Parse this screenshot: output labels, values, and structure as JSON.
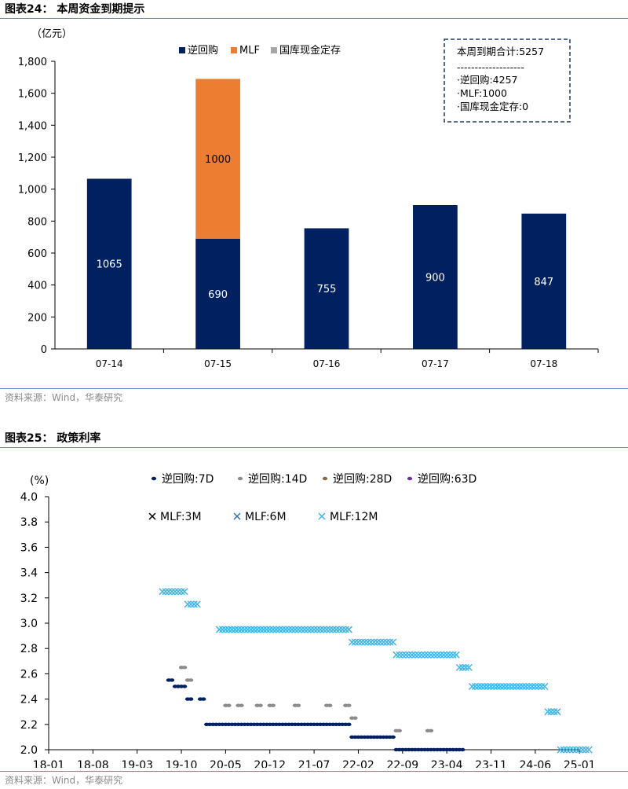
{
  "figures": [
    {
      "title": "图表24： 本周资金到期提示",
      "source": "资料来源：Wind，华泰研究"
    },
    {
      "title": "图表25： 政策利率",
      "source": "资料来源：Wind，华泰研究"
    }
  ],
  "chart_data": [
    {
      "type": "bar",
      "stacked": true,
      "unit_label": "（亿元）",
      "categories": [
        "07-14",
        "07-15",
        "07-16",
        "07-17",
        "07-18"
      ],
      "series": [
        {
          "name": "逆回购",
          "color": "#002060",
          "values": [
            1065,
            690,
            755,
            900,
            847
          ]
        },
        {
          "name": "MLF",
          "color": "#ed7d31",
          "values": [
            0,
            1000,
            0,
            0,
            0
          ]
        },
        {
          "name": "国库现金定存",
          "color": "#a6a6a6",
          "values": [
            0,
            0,
            0,
            0,
            0
          ]
        }
      ],
      "data_labels": [
        {
          "series": 0,
          "index": 0,
          "text": "1065"
        },
        {
          "series": 0,
          "index": 1,
          "text": "690"
        },
        {
          "series": 1,
          "index": 1,
          "text": "1000"
        },
        {
          "series": 0,
          "index": 2,
          "text": "755"
        },
        {
          "series": 0,
          "index": 3,
          "text": "900"
        },
        {
          "series": 0,
          "index": 4,
          "text": "847"
        }
      ],
      "ylim": [
        0,
        1800
      ],
      "yticks": [
        "0",
        "200",
        "400",
        "600",
        "800",
        "1,000",
        "1,200",
        "1,400",
        "1,600",
        "1,800"
      ],
      "legend_position": "top-center",
      "summary_box": {
        "line1": "本周到期合计:5257",
        "divider": "-------------------",
        "line2": "·逆回购:4257",
        "line3": "·MLF:1000",
        "line4": "·国库现金定存:0"
      }
    },
    {
      "type": "scatter",
      "unit_label": "(%)",
      "ylim": [
        2.0,
        4.0
      ],
      "yticks": [
        "2.0",
        "2.2",
        "2.4",
        "2.6",
        "2.8",
        "3.0",
        "3.2",
        "3.4",
        "3.6",
        "3.8",
        "4.0"
      ],
      "xticks": [
        "18-01",
        "18-08",
        "19-03",
        "19-10",
        "20-05",
        "20-12",
        "21-07",
        "22-02",
        "22-09",
        "23-04",
        "23-11",
        "24-06",
        "25-01"
      ],
      "x_range": [
        "2018-01",
        "2025-07"
      ],
      "series": [
        {
          "name": "逆回购:7D",
          "marker": "dot",
          "color": "#002060",
          "points": [
            [
              "2019-08",
              2.55
            ],
            [
              "2019-09",
              2.5
            ],
            [
              "2019-10",
              2.5
            ],
            [
              "2019-11",
              2.4
            ],
            [
              "2020-01",
              2.4
            ],
            [
              "2020-02",
              2.2
            ],
            [
              "2020-03",
              2.2
            ],
            [
              "2020-04",
              2.2
            ],
            [
              "2020-05",
              2.2
            ],
            [
              "2020-06",
              2.2
            ],
            [
              "2020-07",
              2.2
            ],
            [
              "2020-08",
              2.2
            ],
            [
              "2020-09",
              2.2
            ],
            [
              "2020-10",
              2.2
            ],
            [
              "2020-11",
              2.2
            ],
            [
              "2020-12",
              2.2
            ],
            [
              "2021-01",
              2.2
            ],
            [
              "2021-02",
              2.2
            ],
            [
              "2021-03",
              2.2
            ],
            [
              "2021-04",
              2.2
            ],
            [
              "2021-05",
              2.2
            ],
            [
              "2021-06",
              2.2
            ],
            [
              "2021-07",
              2.2
            ],
            [
              "2021-08",
              2.2
            ],
            [
              "2021-09",
              2.2
            ],
            [
              "2021-10",
              2.2
            ],
            [
              "2021-11",
              2.2
            ],
            [
              "2021-12",
              2.2
            ],
            [
              "2022-01",
              2.1
            ],
            [
              "2022-02",
              2.1
            ],
            [
              "2022-03",
              2.1
            ],
            [
              "2022-04",
              2.1
            ],
            [
              "2022-05",
              2.1
            ],
            [
              "2022-06",
              2.1
            ],
            [
              "2022-07",
              2.1
            ],
            [
              "2022-08",
              2.0
            ],
            [
              "2022-09",
              2.0
            ],
            [
              "2022-10",
              2.0
            ],
            [
              "2022-11",
              2.0
            ],
            [
              "2022-12",
              2.0
            ],
            [
              "2023-01",
              2.0
            ],
            [
              "2023-02",
              2.0
            ],
            [
              "2023-03",
              2.0
            ],
            [
              "2023-04",
              2.0
            ],
            [
              "2023-05",
              2.0
            ],
            [
              "2023-06",
              2.0
            ]
          ]
        },
        {
          "name": "逆回购:14D",
          "marker": "dot",
          "color": "#8c8c8c",
          "points": [
            [
              "2019-10",
              2.65
            ],
            [
              "2019-11",
              2.55
            ],
            [
              "2020-05",
              2.35
            ],
            [
              "2020-07",
              2.35
            ],
            [
              "2020-10",
              2.35
            ],
            [
              "2020-12",
              2.35
            ],
            [
              "2021-04",
              2.35
            ],
            [
              "2021-09",
              2.35
            ],
            [
              "2021-12",
              2.35
            ],
            [
              "2022-01",
              2.25
            ],
            [
              "2022-08",
              2.15
            ],
            [
              "2023-01",
              2.15
            ]
          ]
        },
        {
          "name": "逆回购:28D",
          "marker": "dot",
          "color": "#8b6b3d",
          "points": []
        },
        {
          "name": "逆回购:63D",
          "marker": "dot",
          "color": "#7030a0",
          "points": []
        },
        {
          "name": "MLF:3M",
          "marker": "x",
          "color": "#000000",
          "points": []
        },
        {
          "name": "MLF:6M",
          "marker": "x",
          "color": "#2e75b6",
          "points": []
        },
        {
          "name": "MLF:12M",
          "marker": "x",
          "color": "#41b4e6",
          "points": [
            [
              "2019-07",
              3.25
            ],
            [
              "2019-08",
              3.25
            ],
            [
              "2019-09",
              3.25
            ],
            [
              "2019-10",
              3.25
            ],
            [
              "2019-11",
              3.15
            ],
            [
              "2019-12",
              3.15
            ],
            [
              "2020-04",
              2.95
            ],
            [
              "2020-05",
              2.95
            ],
            [
              "2020-06",
              2.95
            ],
            [
              "2020-07",
              2.95
            ],
            [
              "2020-08",
              2.95
            ],
            [
              "2020-09",
              2.95
            ],
            [
              "2020-10",
              2.95
            ],
            [
              "2020-11",
              2.95
            ],
            [
              "2020-12",
              2.95
            ],
            [
              "2021-01",
              2.95
            ],
            [
              "2021-02",
              2.95
            ],
            [
              "2021-03",
              2.95
            ],
            [
              "2021-04",
              2.95
            ],
            [
              "2021-05",
              2.95
            ],
            [
              "2021-06",
              2.95
            ],
            [
              "2021-07",
              2.95
            ],
            [
              "2021-08",
              2.95
            ],
            [
              "2021-09",
              2.95
            ],
            [
              "2021-10",
              2.95
            ],
            [
              "2021-11",
              2.95
            ],
            [
              "2021-12",
              2.95
            ],
            [
              "2022-01",
              2.85
            ],
            [
              "2022-02",
              2.85
            ],
            [
              "2022-03",
              2.85
            ],
            [
              "2022-04",
              2.85
            ],
            [
              "2022-05",
              2.85
            ],
            [
              "2022-06",
              2.85
            ],
            [
              "2022-07",
              2.85
            ],
            [
              "2022-08",
              2.75
            ],
            [
              "2022-09",
              2.75
            ],
            [
              "2022-10",
              2.75
            ],
            [
              "2022-11",
              2.75
            ],
            [
              "2022-12",
              2.75
            ],
            [
              "2023-01",
              2.75
            ],
            [
              "2023-02",
              2.75
            ],
            [
              "2023-03",
              2.75
            ],
            [
              "2023-04",
              2.75
            ],
            [
              "2023-05",
              2.75
            ],
            [
              "2023-06",
              2.65
            ],
            [
              "2023-07",
              2.65
            ],
            [
              "2023-08",
              2.5
            ],
            [
              "2023-09",
              2.5
            ],
            [
              "2023-10",
              2.5
            ],
            [
              "2023-11",
              2.5
            ],
            [
              "2023-12",
              2.5
            ],
            [
              "2024-01",
              2.5
            ],
            [
              "2024-02",
              2.5
            ],
            [
              "2024-03",
              2.5
            ],
            [
              "2024-04",
              2.5
            ],
            [
              "2024-05",
              2.5
            ],
            [
              "2024-06",
              2.5
            ],
            [
              "2024-07",
              2.5
            ],
            [
              "2024-08",
              2.3
            ],
            [
              "2024-09",
              2.3
            ],
            [
              "2024-10",
              2.0
            ],
            [
              "2024-11",
              2.0
            ],
            [
              "2024-12",
              2.0
            ],
            [
              "2025-01",
              2.0
            ],
            [
              "2025-02",
              2.0
            ]
          ]
        }
      ],
      "legend_position": "top"
    }
  ]
}
